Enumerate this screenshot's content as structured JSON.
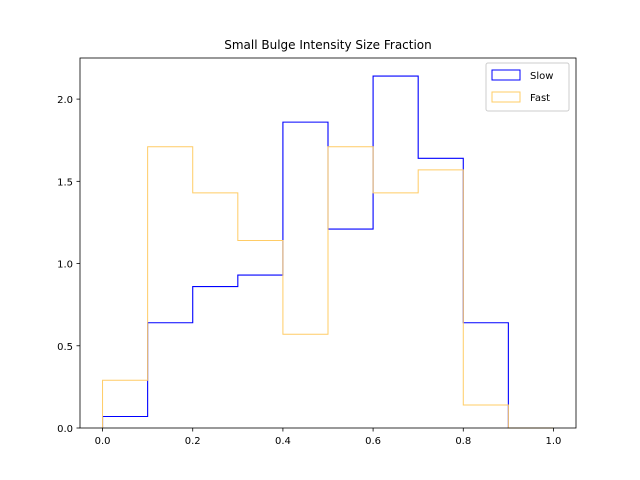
{
  "chart_data": {
    "type": "histogram-step",
    "title": "Small Bulge Intensity Size Fraction",
    "xlabel": "",
    "ylabel": "",
    "xlim": [
      -0.05,
      1.05
    ],
    "ylim": [
      0,
      2.25
    ],
    "xticks": [
      0.0,
      0.2,
      0.4,
      0.6,
      0.8,
      1.0
    ],
    "xtick_labels": [
      "0.0",
      "0.2",
      "0.4",
      "0.6",
      "0.8",
      "1.0"
    ],
    "yticks": [
      0.0,
      0.5,
      1.0,
      1.5,
      2.0
    ],
    "ytick_labels": [
      "0.0",
      "0.5",
      "1.0",
      "1.5",
      "2.0"
    ],
    "bin_edges": [
      0.0,
      0.1,
      0.2,
      0.3,
      0.4,
      0.5,
      0.6,
      0.7,
      0.8,
      0.9,
      1.0
    ],
    "series": [
      {
        "name": "Slow",
        "color": "#0000ff",
        "values": [
          0.07,
          0.64,
          0.86,
          0.93,
          1.86,
          1.21,
          2.14,
          1.64,
          0.64,
          0.0
        ]
      },
      {
        "name": "Fast",
        "color": "#ffcc66",
        "values": [
          0.29,
          1.71,
          1.43,
          1.14,
          0.57,
          1.71,
          1.43,
          1.57,
          0.14,
          0.0
        ]
      }
    ],
    "legend_position": "top-right",
    "grid": false
  }
}
